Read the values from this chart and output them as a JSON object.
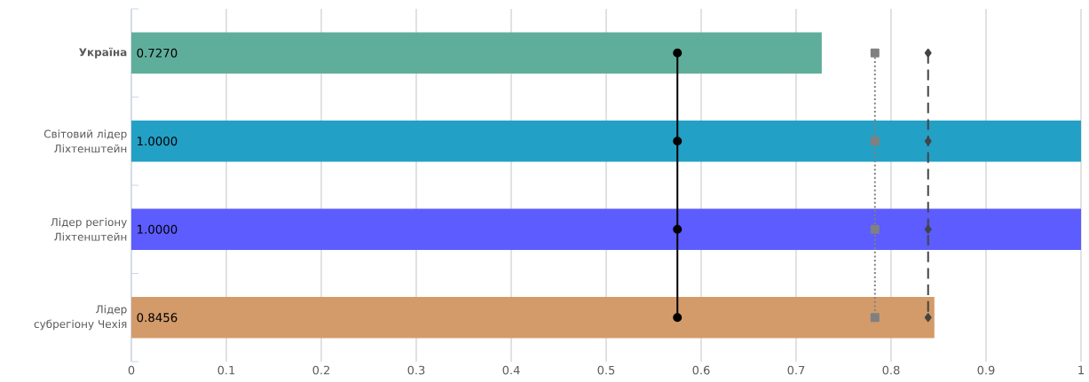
{
  "chart_data": {
    "type": "bar",
    "orientation": "horizontal",
    "grid": "x",
    "categories": [
      "Україна",
      "Світовий лідер Ліхтенштейн",
      "Лідер регіону Ліхтенштейн",
      "Лідер субрегіону Чехія"
    ],
    "xlim": [
      0,
      1
    ],
    "xticks": [
      0,
      0.1,
      0.2,
      0.3,
      0.4,
      0.5,
      0.6,
      0.7,
      0.8,
      0.9,
      1
    ],
    "series": [
      {
        "colors": [
          "#5fae9b",
          "#23a0c6",
          "#5c5cff",
          "#d39b69"
        ],
        "values": [
          0.727,
          1.0,
          1.0,
          0.8456
        ],
        "value_labels": [
          "0.7270",
          "1.0000",
          "1.0000",
          "0.8456"
        ]
      },
      {
        "type": "line",
        "color": "#000000",
        "marker": "circle",
        "line_style": "solid",
        "values": [
          0.575,
          0.575,
          0.575,
          0.575
        ]
      },
      {
        "type": "line",
        "color": "#808080",
        "marker": "square",
        "line_style": "dotted",
        "values": [
          0.783,
          0.783,
          0.783,
          0.783
        ]
      },
      {
        "type": "line",
        "color": "#444444",
        "marker": "diamond",
        "line_style": "dashed",
        "values": [
          0.839,
          0.839,
          0.839,
          0.839
        ]
      }
    ]
  }
}
